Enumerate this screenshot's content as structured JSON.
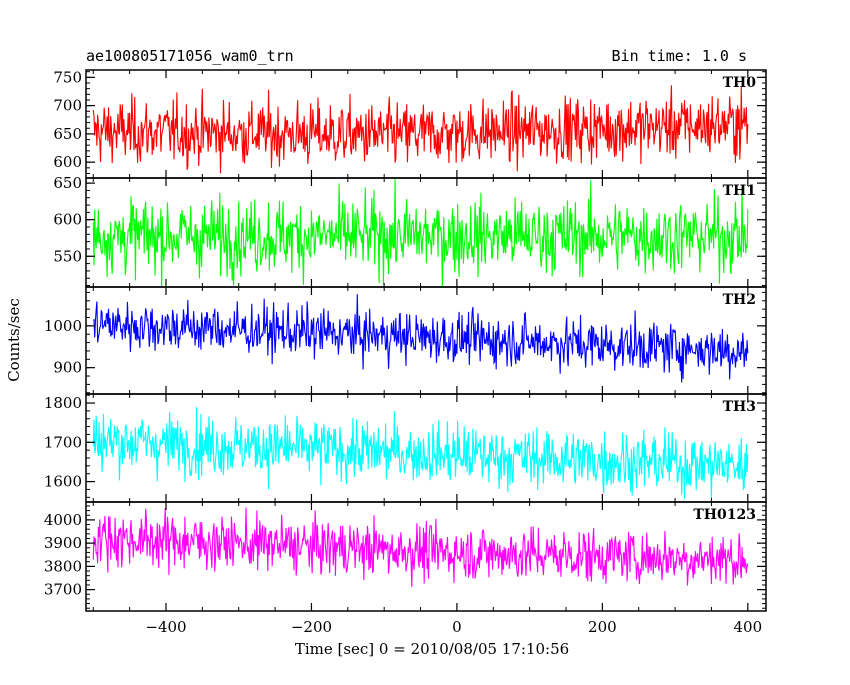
{
  "header": {
    "left": "ae100805171056_wam0_trn",
    "right": "Bin time: 1.0 s"
  },
  "axes": {
    "xlabel": "Time [sec] 0 = 2010/08/05 17:10:56",
    "ylabel": "Counts/sec",
    "xlim": [
      -510,
      425
    ],
    "xticks": [
      -400,
      -200,
      0,
      200,
      400
    ],
    "xtick_labels": [
      "−400",
      "−200",
      "0",
      "200",
      "400"
    ]
  },
  "chart_data": {
    "type": "line",
    "title": "ae100805171056_wam0_trn",
    "x_range": [
      -500,
      400
    ],
    "bin_time_s": 1.0,
    "xlabel": "Time [sec] 0 = 2010/08/05 17:10:56",
    "ylabel": "Counts/sec",
    "panels": [
      {
        "name": "TH0",
        "color": "#ff0000",
        "ylim": [
          572,
          763
        ],
        "yticks": [
          600,
          650,
          700,
          750
        ],
        "trend": [
          [
            -500,
            655
          ],
          [
            -100,
            648
          ],
          [
            400,
            668
          ]
        ],
        "noise": 28
      },
      {
        "name": "TH1",
        "color": "#00ff00",
        "ylim": [
          508,
          657
        ],
        "yticks": [
          550,
          600,
          650
        ],
        "trend": [
          [
            -500,
            578
          ],
          [
            400,
            578
          ]
        ],
        "noise": 25
      },
      {
        "name": "TH2",
        "color": "#0000ff",
        "ylim": [
          837,
          1093
        ],
        "yticks": [
          900,
          1000
        ],
        "trend": [
          [
            -500,
            1005
          ],
          [
            0,
            970
          ],
          [
            400,
            940
          ]
        ],
        "noise": 30
      },
      {
        "name": "TH3",
        "color": "#00ffff",
        "ylim": [
          1548,
          1823
        ],
        "yticks": [
          1600,
          1700,
          1800
        ],
        "trend": [
          [
            -500,
            1705
          ],
          [
            400,
            1640
          ]
        ],
        "noise": 38
      },
      {
        "name": "TH0123",
        "color": "#ff00ff",
        "ylim": [
          3608,
          4077
        ],
        "yticks": [
          3700,
          3800,
          3900,
          4000
        ],
        "trend": [
          [
            -500,
            3925
          ],
          [
            0,
            3860
          ],
          [
            400,
            3830
          ]
        ],
        "noise": 58
      }
    ]
  }
}
